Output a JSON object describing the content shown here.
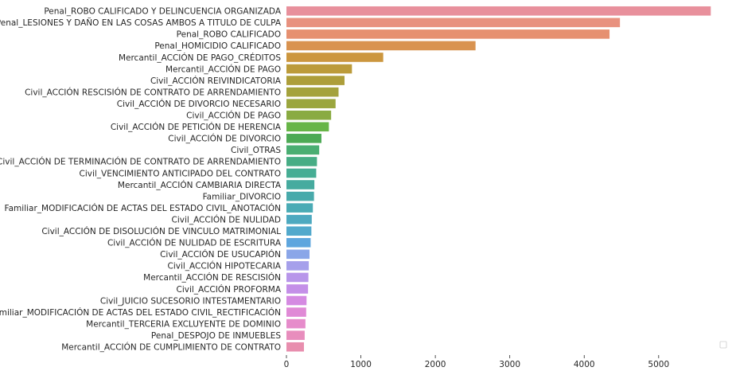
{
  "chart_data": {
    "type": "bar",
    "orientation": "horizontal",
    "title": "",
    "xlabel": "",
    "ylabel": "",
    "xlim": [
      0,
      5900
    ],
    "xticks": [
      0,
      1000,
      2000,
      3000,
      4000,
      5000
    ],
    "grid": false,
    "legend": {
      "placement": "lower-right",
      "entries": []
    },
    "categories": [
      "Penal_ROBO CALIFICADO Y DELINCUENCIA ORGANIZADA",
      "Penal_LESIONES Y DAÑO EN LAS COSAS AMBOS A TITULO DE CULPA",
      "Penal_ROBO CALIFICADO",
      "Penal_HOMICIDIO CALIFICADO",
      "Mercantil_ACCIÓN DE PAGO_CRÉDITOS",
      "Mercantil_ACCIÓN DE PAGO",
      "Civil_ACCIÓN REIVINDICATORIA",
      "Civil_ACCIÓN RESCISIÓN DE CONTRATO DE ARRENDAMIENTO",
      "Civil_ACCIÓN DE DIVORCIO NECESARIO",
      "Civil_ACCIÓN DE PAGO",
      "Civil_ACCIÓN DE PETICIÓN DE HERENCIA",
      "Civil_ACCIÓN DE DIVORCIO",
      "Civil_OTRAS",
      "Civil_ACCIÓN DE TERMINACIÓN DE CONTRATO DE ARRENDAMIENTO",
      "Civil_VENCIMIENTO ANTICIPADO DEL CONTRATO",
      "Mercantil_ACCIÓN CAMBIARIA DIRECTA",
      "Familiar_DIVORCIO",
      "Familiar_MODIFICACIÓN DE ACTAS DEL ESTADO CIVIL_ANOTACIÓN",
      "Civil_ACCIÓN DE NULIDAD",
      "Civil_ACCIÓN DE DISOLUCIÓN DE VINCULO MATRIMONIAL",
      "Civil_ACCIÓN DE NULIDAD DE ESCRITURA",
      "Civil_ACCIÓN DE USUCAPIÓN",
      "Civil_ACCIÓN HIPOTECARIA",
      "Mercantil_ACCIÓN DE RESCISIÓN",
      "Civil_ACCIÓN PROFORMA",
      "Civil_JUICIO SUCESORIO INTESTAMENTARIO",
      "Familiar_MODIFICACIÓN DE ACTAS DEL ESTADO CIVIL_RECTIFICACIÓN",
      "Mercantil_TERCERIA EXCLUYENTE DE DOMINIO",
      "Penal_DESPOJO DE INMUEBLES",
      "Mercantil_ACCIÓN DE CUMPLIMIENTO DE CONTRATO"
    ],
    "values": [
      5700,
      4480,
      4340,
      2540,
      1300,
      880,
      780,
      700,
      660,
      600,
      570,
      470,
      440,
      410,
      400,
      375,
      370,
      355,
      340,
      335,
      325,
      310,
      300,
      295,
      290,
      270,
      265,
      255,
      245,
      235
    ],
    "colors": [
      "#e8909c",
      "#e8917f",
      "#e69070",
      "#d99350",
      "#cc963e",
      "#bc9b3a",
      "#ad9e3a",
      "#a4a23c",
      "#9ba63e",
      "#8aab42",
      "#67b547",
      "#4daa55",
      "#4aae72",
      "#47ad85",
      "#46ad94",
      "#46ab9f",
      "#48aaab",
      "#4aabb5",
      "#4da9c0",
      "#52a9cc",
      "#5ea6de",
      "#8aa6e8",
      "#a6a0eb",
      "#b896ea",
      "#c48fe8",
      "#d58ae2",
      "#e08ad6",
      "#e68ccb",
      "#e88dbd",
      "#e88eae"
    ]
  }
}
